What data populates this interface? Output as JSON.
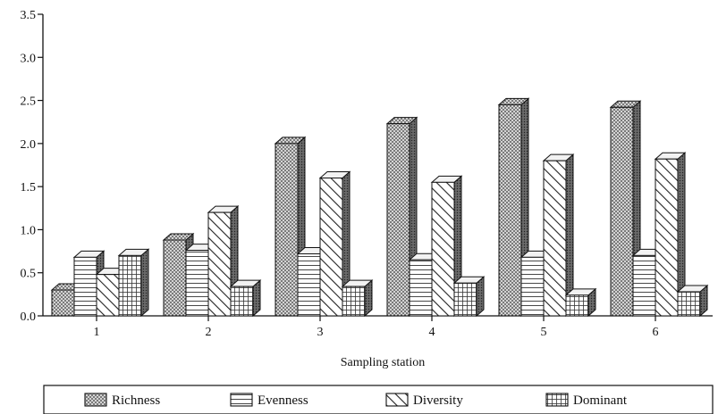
{
  "chart_data": {
    "type": "bar",
    "title": "",
    "xlabel": "Sampling station",
    "ylabel": "",
    "categories": [
      "1",
      "2",
      "3",
      "4",
      "5",
      "6"
    ],
    "ylim": [
      0,
      3.5
    ],
    "yticks": [
      "0.0",
      "0.5",
      "1.0",
      "1.5",
      "2.0",
      "2.5",
      "3.0",
      "3.5"
    ],
    "grid": false,
    "legend_position": "bottom",
    "series": [
      {
        "name": "Richness",
        "pattern": "dots",
        "values": [
          0.3,
          0.88,
          2.0,
          2.23,
          2.45,
          2.42
        ]
      },
      {
        "name": "Evenness",
        "pattern": "horizontal",
        "values": [
          0.68,
          0.76,
          0.72,
          0.65,
          0.68,
          0.7
        ]
      },
      {
        "name": "Diversity",
        "pattern": "diagonal",
        "values": [
          0.48,
          1.2,
          1.6,
          1.55,
          1.8,
          1.82
        ]
      },
      {
        "name": "Dominant",
        "pattern": "grid",
        "values": [
          0.7,
          0.34,
          0.34,
          0.38,
          0.24,
          0.28
        ]
      }
    ]
  }
}
